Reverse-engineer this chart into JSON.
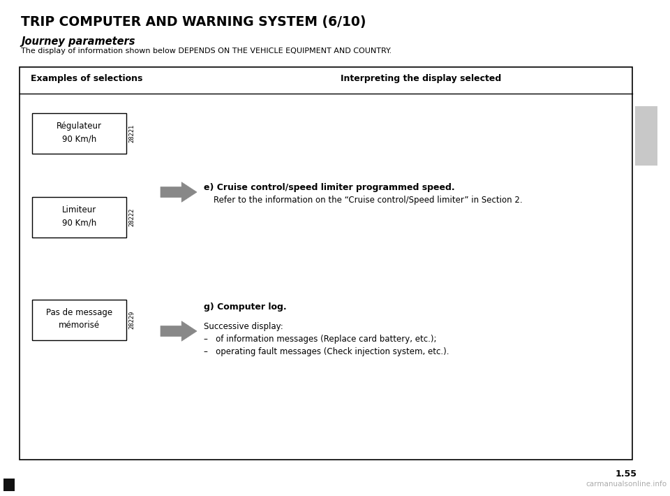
{
  "title": "TRIP COMPUTER AND WARNING SYSTEM (6/10)",
  "subtitle": "Journey parameters",
  "subtitle2": "The display of information shown below DEPENDS ON THE VEHICLE EQUIPMENT AND COUNTRY.",
  "col_left": "Examples of selections",
  "col_right": "Interpreting the display selected",
  "box1_line1": "Régulateur",
  "box1_line2": "90 Km/h",
  "box2_line1": "Limiteur",
  "box2_line2": "90 Km/h",
  "box3_line1": "Pas de message",
  "box3_line2": "mémorisé",
  "label1": "28221",
  "label2": "28222",
  "label3": "28229",
  "section_e_bold": "e) Cruise control/speed limiter programmed speed.",
  "section_e_normal": "Refer to the information on the “Cruise control/Speed limiter” in Section 2.",
  "section_g_bold": "g) Computer log.",
  "section_g_line1": "Successive display:",
  "section_g_bullet1": "–   of information messages (Replace card battery, etc.);",
  "section_g_bullet2": "–   operating fault messages (Check injection system, etc.).",
  "page_num": "1.55",
  "watermark": "carmanualsonline.info",
  "bg_color": "#ffffff",
  "box_border": "#000000",
  "text_color": "#000000",
  "gray_tab": "#c8c8c8",
  "arrow_color": "#888888"
}
